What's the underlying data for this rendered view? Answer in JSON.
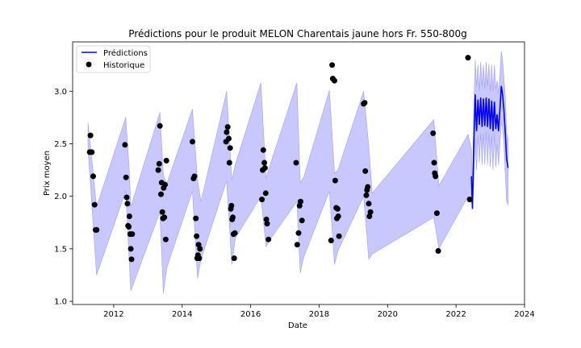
{
  "chart_data": {
    "type": "line",
    "title": "Prédictions pour le produit MELON Charentais jaune hors Fr. 550-800g",
    "xlabel": "Date",
    "ylabel": "Prix moyen",
    "xlim": [
      2010.8,
      2024.0
    ],
    "ylim": [
      0.97,
      3.47
    ],
    "x_ticks": [
      2012,
      2014,
      2016,
      2018,
      2020,
      2022,
      2024
    ],
    "y_ticks": [
      1.0,
      1.5,
      2.0,
      2.5,
      3.0
    ],
    "grid": false,
    "legend": {
      "placement": "top-left",
      "entries": [
        "Prédictions",
        "Historique"
      ]
    },
    "colors": {
      "prediction": "#0000ff",
      "band": "#c8c8ff",
      "band_edge": "#a0a0f0",
      "history": "#000000"
    },
    "series": [
      {
        "name": "Prédictions",
        "kind": "line",
        "x": [
          2022.45,
          2022.48,
          2022.52,
          2022.56,
          2022.6,
          2022.64,
          2022.68,
          2022.72,
          2022.76,
          2022.8,
          2022.84,
          2022.88,
          2022.92,
          2022.96,
          2023.0,
          2023.04,
          2023.08,
          2023.12,
          2023.16,
          2023.2,
          2023.24,
          2023.28,
          2023.32,
          2023.36,
          2023.4,
          2023.44,
          2023.48,
          2023.52
        ],
        "y": [
          2.19,
          1.88,
          2.5,
          2.97,
          2.62,
          2.92,
          2.68,
          2.94,
          2.66,
          2.93,
          2.67,
          2.94,
          2.66,
          2.93,
          2.64,
          2.91,
          2.62,
          2.9,
          2.64,
          2.78,
          2.62,
          2.82,
          3.05,
          2.97,
          2.82,
          2.6,
          2.35,
          2.27
        ]
      },
      {
        "name": "Intervalle",
        "kind": "band",
        "x": [
          2011.25,
          2011.5,
          2012.35,
          2012.45,
          2012.5,
          2013.35,
          2013.45,
          2013.55,
          2014.3,
          2014.45,
          2014.55,
          2015.3,
          2015.45,
          2015.55,
          2016.3,
          2016.45,
          2016.55,
          2017.35,
          2017.45,
          2017.55,
          2018.3,
          2018.45,
          2018.55,
          2019.3,
          2019.45,
          2019.55,
          2021.35,
          2021.5,
          2022.35,
          2022.45,
          2022.48,
          2022.52,
          2022.56,
          2022.6,
          2022.64,
          2022.68,
          2022.72,
          2022.76,
          2022.8,
          2022.84,
          2022.88,
          2022.92,
          2022.96,
          2023.0,
          2023.04,
          2023.08,
          2023.12,
          2023.16,
          2023.2,
          2023.24,
          2023.28,
          2023.32,
          2023.36,
          2023.4,
          2023.44,
          2023.48,
          2023.52
        ],
        "lower": [
          2.45,
          1.25,
          2.05,
          1.4,
          1.1,
          1.85,
          1.08,
          1.32,
          2.05,
          1.22,
          1.4,
          2.15,
          1.35,
          1.6,
          2.0,
          1.52,
          1.58,
          1.95,
          1.27,
          1.42,
          2.05,
          1.35,
          1.48,
          2.0,
          1.4,
          1.45,
          1.8,
          1.5,
          2.0,
          1.95,
          1.9,
          2.15,
          2.55,
          2.25,
          2.58,
          2.32,
          2.6,
          2.3,
          2.6,
          2.3,
          2.62,
          2.3,
          2.6,
          2.28,
          2.58,
          2.25,
          2.6,
          2.28,
          2.5,
          2.3,
          2.5,
          2.7,
          2.65,
          2.5,
          2.2,
          1.95,
          1.92
        ],
        "upper": [
          2.7,
          1.9,
          2.75,
          2.28,
          1.9,
          2.8,
          2.2,
          2.12,
          2.83,
          2.15,
          1.95,
          3.0,
          2.15,
          2.3,
          3.08,
          2.17,
          2.28,
          3.08,
          2.13,
          2.18,
          3.01,
          2.22,
          2.25,
          3.0,
          2.48,
          2.03,
          2.73,
          2.1,
          2.59,
          2.45,
          2.1,
          2.85,
          3.3,
          3.05,
          3.25,
          3.0,
          3.28,
          3.05,
          3.25,
          3.02,
          3.28,
          3.05,
          3.26,
          3.0,
          3.25,
          3.0,
          3.25,
          3.02,
          3.1,
          2.98,
          3.15,
          3.38,
          3.3,
          3.12,
          2.95,
          2.6,
          2.55
        ]
      },
      {
        "name": "Historique",
        "kind": "scatter",
        "x": [
          2011.3,
          2011.32,
          2011.36,
          2011.4,
          2011.44,
          2011.47,
          2011.5,
          2012.33,
          2012.36,
          2012.38,
          2012.4,
          2012.42,
          2012.44,
          2012.46,
          2012.48,
          2012.5,
          2012.52,
          2012.54,
          2013.3,
          2013.33,
          2013.35,
          2013.38,
          2013.4,
          2013.42,
          2013.44,
          2013.46,
          2013.48,
          2013.5,
          2013.52,
          2013.54,
          2014.3,
          2014.33,
          2014.36,
          2014.4,
          2014.42,
          2014.44,
          2014.46,
          2014.48,
          2014.5,
          2014.52,
          2015.28,
          2015.3,
          2015.33,
          2015.36,
          2015.38,
          2015.4,
          2015.42,
          2015.44,
          2015.46,
          2015.48,
          2015.5,
          2015.52,
          2015.54,
          2016.33,
          2016.35,
          2016.37,
          2016.4,
          2016.42,
          2016.44,
          2016.46,
          2016.48,
          2016.52,
          2017.33,
          2017.36,
          2017.4,
          2017.43,
          2017.46,
          2017.5,
          2018.35,
          2018.38,
          2018.4,
          2018.45,
          2018.47,
          2018.5,
          2018.52,
          2018.54,
          2018.56,
          2018.58,
          2019.3,
          2019.33,
          2019.35,
          2019.38,
          2019.4,
          2019.42,
          2019.45,
          2019.47,
          2019.5,
          2021.33,
          2021.36,
          2021.38,
          2021.4,
          2021.44,
          2021.48,
          2022.35,
          2022.4
        ],
        "y": [
          2.42,
          2.58,
          2.42,
          2.19,
          1.92,
          1.68,
          1.68,
          2.49,
          2.18,
          1.99,
          1.93,
          1.72,
          1.71,
          1.81,
          1.64,
          1.5,
          1.4,
          1.64,
          2.25,
          2.31,
          2.67,
          2.02,
          2.13,
          1.85,
          1.79,
          2.08,
          1.8,
          2.11,
          1.59,
          2.34,
          2.52,
          2.17,
          2.19,
          1.79,
          1.62,
          1.41,
          1.44,
          1.54,
          1.41,
          1.5,
          2.52,
          2.61,
          2.66,
          2.55,
          2.32,
          2.46,
          1.88,
          1.91,
          1.78,
          1.8,
          1.64,
          1.41,
          1.65,
          1.97,
          2.25,
          2.44,
          2.32,
          2.27,
          2.03,
          1.78,
          1.74,
          1.59,
          2.32,
          1.54,
          1.65,
          1.91,
          1.95,
          1.77,
          1.58,
          3.25,
          3.12,
          3.1,
          2.15,
          1.89,
          1.79,
          1.88,
          1.81,
          1.62,
          2.88,
          2.89,
          2.24,
          2.01,
          2.06,
          2.09,
          1.93,
          1.81,
          1.85,
          2.6,
          2.32,
          2.22,
          2.19,
          1.84,
          1.48,
          3.32,
          1.97
        ]
      }
    ]
  }
}
